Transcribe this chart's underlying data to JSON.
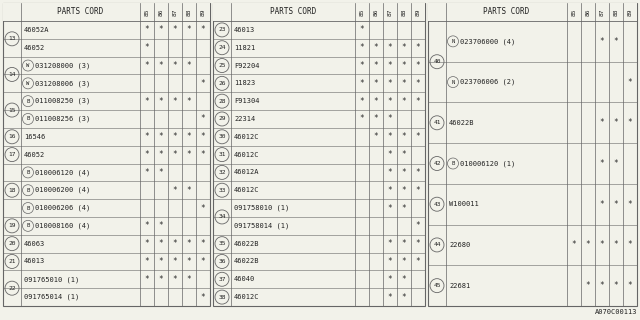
{
  "bg_color": "#f2f2ea",
  "line_color": "#666666",
  "text_color": "#222222",
  "panels": [
    {
      "col_header": "PARTS CORD",
      "sub_cols": [
        "85",
        "86",
        "87",
        "88",
        "89"
      ],
      "rows": [
        {
          "ref": "13",
          "parts": [
            {
              "code": "46052A",
              "prefix": "",
              "stars": [
                1,
                1,
                1,
                1,
                1
              ]
            },
            {
              "code": "46052",
              "prefix": "",
              "stars": [
                1,
                0,
                0,
                0,
                0
              ]
            }
          ]
        },
        {
          "ref": "14",
          "parts": [
            {
              "code": "031208000 (3)",
              "prefix": "W",
              "stars": [
                1,
                1,
                1,
                1,
                0
              ]
            },
            {
              "code": "031208006 (3)",
              "prefix": "W",
              "stars": [
                0,
                0,
                0,
                0,
                1
              ]
            }
          ]
        },
        {
          "ref": "15",
          "parts": [
            {
              "code": "011008250 (3)",
              "prefix": "B",
              "stars": [
                1,
                1,
                1,
                1,
                0
              ]
            },
            {
              "code": "011008256 (3)",
              "prefix": "B",
              "stars": [
                0,
                0,
                0,
                0,
                1
              ]
            }
          ]
        },
        {
          "ref": "16",
          "parts": [
            {
              "code": "16546",
              "prefix": "",
              "stars": [
                1,
                1,
                1,
                1,
                1
              ]
            }
          ]
        },
        {
          "ref": "17",
          "parts": [
            {
              "code": "46052",
              "prefix": "",
              "stars": [
                1,
                1,
                1,
                1,
                1
              ]
            }
          ]
        },
        {
          "ref": "18",
          "parts": [
            {
              "code": "010006120 (4)",
              "prefix": "B",
              "stars": [
                1,
                1,
                0,
                0,
                0
              ]
            },
            {
              "code": "010006200 (4)",
              "prefix": "B",
              "stars": [
                0,
                0,
                1,
                1,
                0
              ]
            },
            {
              "code": "010006206 (4)",
              "prefix": "B",
              "stars": [
                0,
                0,
                0,
                0,
                1
              ]
            }
          ]
        },
        {
          "ref": "19",
          "parts": [
            {
              "code": "010008160 (4)",
              "prefix": "B",
              "stars": [
                1,
                1,
                0,
                0,
                0
              ]
            }
          ]
        },
        {
          "ref": "20",
          "parts": [
            {
              "code": "46063",
              "prefix": "",
              "stars": [
                1,
                1,
                1,
                1,
                1
              ]
            }
          ]
        },
        {
          "ref": "21",
          "parts": [
            {
              "code": "46013",
              "prefix": "",
              "stars": [
                1,
                1,
                1,
                1,
                1
              ]
            }
          ]
        },
        {
          "ref": "22",
          "parts": [
            {
              "code": "091765010 (1)",
              "prefix": "",
              "stars": [
                1,
                1,
                1,
                1,
                0
              ]
            },
            {
              "code": "091765014 (1)",
              "prefix": "",
              "stars": [
                0,
                0,
                0,
                0,
                1
              ]
            }
          ]
        }
      ]
    },
    {
      "col_header": "PARTS CORD",
      "sub_cols": [
        "85",
        "86",
        "87",
        "88",
        "89"
      ],
      "rows": [
        {
          "ref": "23",
          "parts": [
            {
              "code": "46013",
              "prefix": "",
              "stars": [
                1,
                0,
                0,
                0,
                0
              ]
            }
          ]
        },
        {
          "ref": "24",
          "parts": [
            {
              "code": "11821",
              "prefix": "",
              "stars": [
                1,
                1,
                1,
                1,
                1
              ]
            }
          ]
        },
        {
          "ref": "25",
          "parts": [
            {
              "code": "F92204",
              "prefix": "",
              "stars": [
                1,
                1,
                1,
                1,
                1
              ]
            }
          ]
        },
        {
          "ref": "26",
          "parts": [
            {
              "code": "11823",
              "prefix": "",
              "stars": [
                1,
                1,
                1,
                1,
                1
              ]
            }
          ]
        },
        {
          "ref": "28",
          "parts": [
            {
              "code": "F91304",
              "prefix": "",
              "stars": [
                1,
                1,
                1,
                1,
                1
              ]
            }
          ]
        },
        {
          "ref": "29",
          "parts": [
            {
              "code": "22314",
              "prefix": "",
              "stars": [
                1,
                1,
                1,
                0,
                0
              ]
            }
          ]
        },
        {
          "ref": "30",
          "parts": [
            {
              "code": "46012C",
              "prefix": "",
              "stars": [
                0,
                1,
                1,
                1,
                1
              ]
            }
          ]
        },
        {
          "ref": "31",
          "parts": [
            {
              "code": "46012C",
              "prefix": "",
              "stars": [
                0,
                0,
                1,
                1,
                0
              ]
            }
          ]
        },
        {
          "ref": "32",
          "parts": [
            {
              "code": "46012A",
              "prefix": "",
              "stars": [
                0,
                0,
                1,
                1,
                1
              ]
            }
          ]
        },
        {
          "ref": "33",
          "parts": [
            {
              "code": "46012C",
              "prefix": "",
              "stars": [
                0,
                0,
                1,
                1,
                1
              ]
            }
          ]
        },
        {
          "ref": "34",
          "parts": [
            {
              "code": "091758010 (1)",
              "prefix": "",
              "stars": [
                0,
                0,
                1,
                1,
                0
              ]
            },
            {
              "code": "091758014 (1)",
              "prefix": "",
              "stars": [
                0,
                0,
                0,
                0,
                1
              ]
            }
          ]
        },
        {
          "ref": "35",
          "parts": [
            {
              "code": "46022B",
              "prefix": "",
              "stars": [
                0,
                0,
                1,
                1,
                1
              ]
            }
          ]
        },
        {
          "ref": "36",
          "parts": [
            {
              "code": "46022B",
              "prefix": "",
              "stars": [
                0,
                0,
                1,
                1,
                1
              ]
            }
          ]
        },
        {
          "ref": "37",
          "parts": [
            {
              "code": "46040",
              "prefix": "",
              "stars": [
                0,
                0,
                1,
                1,
                0
              ]
            }
          ]
        },
        {
          "ref": "38",
          "parts": [
            {
              "code": "46012C",
              "prefix": "",
              "stars": [
                0,
                0,
                1,
                1,
                0
              ]
            }
          ]
        }
      ]
    },
    {
      "col_header": "PARTS CORD",
      "sub_cols": [
        "85",
        "86",
        "87",
        "88",
        "89"
      ],
      "rows": [
        {
          "ref": "40",
          "parts": [
            {
              "code": "023706000 (4)",
              "prefix": "N",
              "stars": [
                0,
                0,
                1,
                1,
                0
              ]
            },
            {
              "code": "023706006 (2)",
              "prefix": "N",
              "stars": [
                0,
                0,
                0,
                0,
                1
              ]
            }
          ]
        },
        {
          "ref": "41",
          "parts": [
            {
              "code": "46022B",
              "prefix": "",
              "stars": [
                0,
                0,
                1,
                1,
                1
              ]
            }
          ]
        },
        {
          "ref": "42",
          "parts": [
            {
              "code": "010006120 (1)",
              "prefix": "B",
              "stars": [
                0,
                0,
                1,
                1,
                0
              ]
            }
          ]
        },
        {
          "ref": "43",
          "parts": [
            {
              "code": "W100011",
              "prefix": "",
              "stars": [
                0,
                0,
                1,
                1,
                1
              ]
            }
          ]
        },
        {
          "ref": "44",
          "parts": [
            {
              "code": "22680",
              "prefix": "",
              "stars": [
                1,
                1,
                1,
                1,
                1
              ]
            }
          ]
        },
        {
          "ref": "45",
          "parts": [
            {
              "code": "22681",
              "prefix": "",
              "stars": [
                0,
                1,
                1,
                1,
                1
              ]
            }
          ]
        }
      ]
    }
  ],
  "watermark": "A070C00113"
}
